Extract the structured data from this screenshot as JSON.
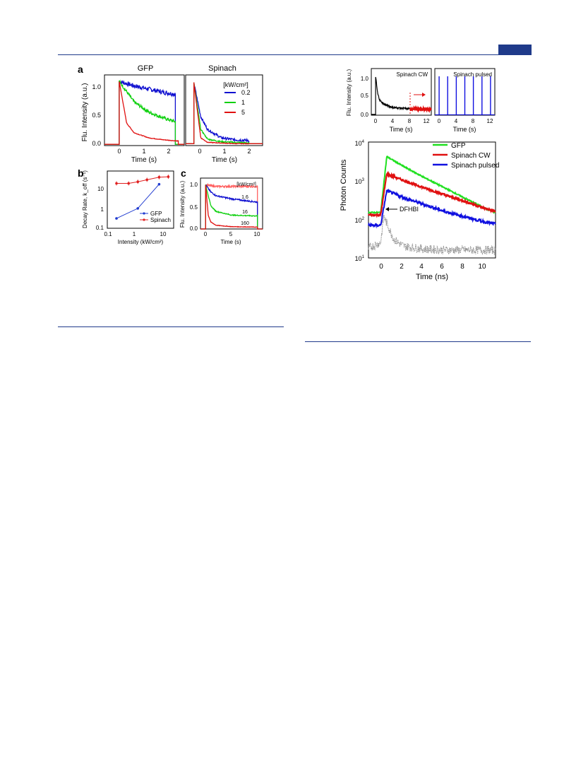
{
  "figure_left": {
    "panel_a": {
      "letter": "a",
      "gfp_title": "GFP",
      "spinach_title": "Spinach",
      "ylabel": "Flu. Intensity (a.u.)",
      "xlabel": "Time (s)",
      "legend_title": "[kW/cm²]",
      "legend": [
        {
          "label": "0.2",
          "color": "#1010d0"
        },
        {
          "label": "1",
          "color": "#10d010"
        },
        {
          "label": "5",
          "color": "#e01010"
        }
      ],
      "yticks": [
        "0.0",
        "0.5",
        "1.0"
      ],
      "xticks_gfp": [
        "0",
        "1",
        "2"
      ],
      "xticks_spinach": [
        "0",
        "1",
        "2"
      ]
    },
    "panel_b": {
      "letter": "b",
      "ylabel": "Decay Rate, k_off (s⁻¹)",
      "xlabel": "Intensity (kW/cm²)",
      "yticks": [
        "0.1",
        "1",
        "10"
      ],
      "xticks": [
        "0.1",
        "1",
        "10"
      ],
      "legend": [
        {
          "label": "GFP",
          "color": "#1f3ad0"
        },
        {
          "label": "Spinach",
          "color": "#e02020"
        }
      ]
    },
    "panel_c": {
      "letter": "c",
      "ylabel": "Flu. Intensity (a.u.)",
      "xlabel": "Time (s)",
      "yticks": [
        "0.0",
        "0.5",
        "1.0"
      ],
      "xticks": [
        "0",
        "5",
        "10"
      ],
      "unit_label": "[kW/cm²]",
      "curve_labels": [
        "1.6",
        "16",
        "160"
      ]
    }
  },
  "figure_right": {
    "inset_cw": {
      "title": "Spinach CW",
      "ylabel": "Flu. Intensity (a.u.)",
      "xlabel": "Time (s)",
      "yticks": [
        "0.0",
        "0.5",
        "1.0"
      ],
      "xticks": [
        "0",
        "4",
        "8",
        "12"
      ]
    },
    "inset_pulsed": {
      "title": "Spinach pulsed",
      "xlabel": "Time (s)",
      "xticks": [
        "0",
        "4",
        "8",
        "12"
      ]
    },
    "main": {
      "ylabel": "Photon Counts",
      "xlabel": "Time (ns)",
      "xticks": [
        "0",
        "2",
        "4",
        "6",
        "8",
        "10"
      ],
      "ytick_bases": [
        "10",
        "10",
        "10",
        "10"
      ],
      "ytick_exps": [
        "1",
        "2",
        "3",
        "4"
      ],
      "legend": [
        {
          "label": "GFP",
          "color": "#20e020"
        },
        {
          "label": "Spinach CW",
          "color": "#e01010"
        },
        {
          "label": "Spinach pulsed",
          "color": "#1010e0"
        }
      ],
      "annotation": "DFHBI"
    }
  },
  "chart_data": [
    {
      "type": "line",
      "title": "GFP",
      "xlabel": "Time (s)",
      "ylabel": "Flu. Intensity (a.u.)",
      "xlim": [
        -0.5,
        2.2
      ],
      "ylim": [
        0,
        1.1
      ],
      "series": [
        {
          "name": "0.2",
          "x": [
            0,
            0.5,
            1,
            1.5,
            1.9
          ],
          "values": [
            1.0,
            0.93,
            0.88,
            0.83,
            0.8
          ]
        },
        {
          "name": "1",
          "x": [
            0,
            0.5,
            1,
            1.5,
            1.9
          ],
          "values": [
            1.0,
            0.68,
            0.52,
            0.43,
            0.37
          ]
        },
        {
          "name": "5",
          "x": [
            0,
            0.25,
            0.5,
            1,
            1.5,
            2
          ],
          "values": [
            1.0,
            0.35,
            0.2,
            0.12,
            0.09,
            0.07
          ]
        }
      ]
    },
    {
      "type": "line",
      "title": "Spinach",
      "xlabel": "Time (s)",
      "ylabel": "Flu. Intensity (a.u.)",
      "xlim": [
        -0.3,
        2.5
      ],
      "ylim": [
        0,
        1.1
      ],
      "series": [
        {
          "name": "0.2",
          "x": [
            0,
            0.25,
            0.5,
            1,
            1.5,
            2
          ],
          "values": [
            0.98,
            0.45,
            0.25,
            0.12,
            0.09,
            0.08
          ]
        },
        {
          "name": "1",
          "x": [
            0,
            0.25,
            0.5,
            1,
            1.5,
            2
          ],
          "values": [
            0.98,
            0.25,
            0.1,
            0.06,
            0.05,
            0.04
          ]
        },
        {
          "name": "5",
          "x": [
            0,
            0.25,
            0.5,
            1,
            1.5,
            2
          ],
          "values": [
            0.98,
            0.12,
            0.05,
            0.04,
            0.03,
            0.03
          ]
        }
      ]
    },
    {
      "type": "scatter",
      "xlabel": "Intensity (kW/cm²)",
      "ylabel": "Decay Rate, k_off (s⁻¹)",
      "xscale": "log",
      "yscale": "log",
      "xlim": [
        0.1,
        15
      ],
      "ylim": [
        0.1,
        40
      ],
      "series": [
        {
          "name": "GFP",
          "x": [
            0.2,
            1,
            5
          ],
          "values": [
            0.28,
            0.8,
            10
          ]
        },
        {
          "name": "Spinach",
          "x": [
            0.2,
            0.5,
            1,
            2,
            5,
            10
          ],
          "values": [
            11,
            11,
            13,
            16,
            21,
            22
          ]
        }
      ]
    },
    {
      "type": "line",
      "xlabel": "Time (s)",
      "ylabel": "Flu. Intensity (a.u.)",
      "xlim": [
        -1,
        11
      ],
      "ylim": [
        0,
        1.1
      ],
      "series": [
        {
          "name": "",
          "x": [
            0,
            2,
            5,
            10
          ],
          "values": [
            0.95,
            0.92,
            0.92,
            0.92
          ]
        },
        {
          "name": "1.6",
          "x": [
            0,
            1,
            2,
            5,
            10
          ],
          "values": [
            0.95,
            0.8,
            0.72,
            0.65,
            0.58
          ]
        },
        {
          "name": "16",
          "x": [
            0,
            1,
            2,
            5,
            10
          ],
          "values": [
            0.95,
            0.5,
            0.38,
            0.3,
            0.28
          ]
        },
        {
          "name": "160",
          "x": [
            0,
            0.5,
            1,
            2,
            5,
            10
          ],
          "values": [
            0.95,
            0.3,
            0.15,
            0.08,
            0.05,
            0.04
          ]
        }
      ]
    },
    {
      "type": "line",
      "title": "Spinach CW",
      "xlabel": "Time (s)",
      "ylabel": "Flu. Intensity (a.u.)",
      "xlim": [
        -1,
        13
      ],
      "ylim": [
        0,
        1.2
      ],
      "series": [
        {
          "name": "",
          "x": [
            0,
            0.5,
            1,
            2,
            4,
            8,
            13
          ],
          "values": [
            1.0,
            0.55,
            0.38,
            0.28,
            0.2,
            0.16,
            0.15
          ]
        }
      ]
    },
    {
      "type": "line",
      "title": "Spinach pulsed",
      "xlabel": "Time (s)",
      "xlim": [
        -1,
        13
      ],
      "ylim": [
        0,
        1.2
      ],
      "series": [
        {
          "name": "",
          "x": [
            0,
            2,
            4,
            6,
            8,
            10,
            12
          ],
          "values": [
            1.0,
            1.0,
            1.0,
            1.0,
            1.0,
            1.0,
            1.0
          ]
        }
      ]
    },
    {
      "type": "line",
      "xlabel": "Time (ns)",
      "ylabel": "Photon Counts",
      "yscale": "log",
      "xlim": [
        -1.5,
        11
      ],
      "ylim": [
        10,
        10000
      ],
      "series": [
        {
          "name": "GFP",
          "x": [
            -1.5,
            -0.3,
            0.3,
            2,
            4,
            6,
            8,
            10,
            11
          ],
          "values": [
            150,
            150,
            4200,
            2300,
            1200,
            650,
            350,
            190,
            150
          ]
        },
        {
          "name": "Spinach CW",
          "x": [
            -1.5,
            -0.3,
            0.3,
            2,
            4,
            6,
            8,
            10,
            11
          ],
          "values": [
            130,
            130,
            1500,
            1000,
            650,
            430,
            290,
            190,
            160
          ]
        },
        {
          "name": "Spinach pulsed",
          "x": [
            -1.5,
            -0.3,
            0.3,
            2,
            4,
            6,
            8,
            10,
            11
          ],
          "values": [
            70,
            70,
            550,
            360,
            240,
            160,
            115,
            85,
            75
          ]
        },
        {
          "name": "DFHBI",
          "x": [
            -1.5,
            -0.3,
            0,
            0.5,
            1,
            2,
            4,
            6,
            8,
            11
          ],
          "values": [
            18,
            25,
            120,
            60,
            30,
            20,
            17,
            16,
            16,
            16
          ]
        }
      ]
    }
  ]
}
